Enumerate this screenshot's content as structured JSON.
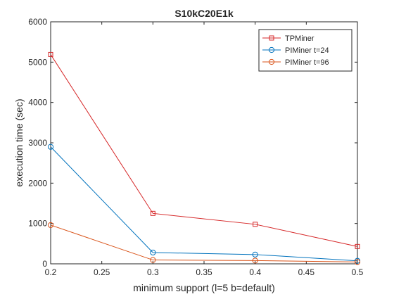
{
  "chart_data": {
    "type": "line",
    "title": "S10kC20E1k",
    "xlabel": "minimum support (l=5 b=default)",
    "ylabel": "execution time (sec)",
    "xlim": [
      0.2,
      0.5
    ],
    "ylim": [
      0,
      6000
    ],
    "xticks": [
      "0.2",
      "0.25",
      "0.3",
      "0.35",
      "0.4",
      "0.45",
      "0.5"
    ],
    "yticks": [
      "0",
      "1000",
      "2000",
      "3000",
      "4000",
      "5000",
      "6000"
    ],
    "grid": false,
    "legend_position": "top-right",
    "x": [
      0.2,
      0.3,
      0.4,
      0.5
    ],
    "series": [
      {
        "name": "TPMiner",
        "values": [
          5190,
          1250,
          980,
          430
        ],
        "color": "#d62728",
        "marker": "square"
      },
      {
        "name": "PIMiner t=24",
        "values": [
          2900,
          280,
          230,
          75
        ],
        "color": "#0072bd",
        "marker": "circle"
      },
      {
        "name": "PIMiner t=96",
        "values": [
          960,
          95,
          80,
          45
        ],
        "color": "#d95319",
        "marker": "circle"
      }
    ]
  }
}
